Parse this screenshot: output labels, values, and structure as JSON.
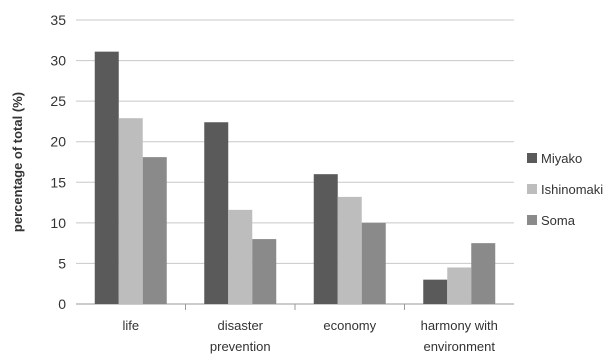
{
  "chart_data": {
    "type": "bar",
    "ylabel": "percentage of total (%)",
    "xlabel": "",
    "ylim": [
      0,
      35
    ],
    "yticks": [
      0,
      5,
      10,
      15,
      20,
      25,
      30,
      35
    ],
    "grid": "horizontal",
    "legend_position": "right",
    "categories": [
      [
        "life"
      ],
      [
        "disaster",
        "prevention"
      ],
      [
        "economy"
      ],
      [
        "harmony with",
        "environment"
      ]
    ],
    "series": [
      {
        "name": "Miyako",
        "color": "#5a5a5a",
        "values": [
          31.1,
          22.4,
          16.0,
          3.0
        ]
      },
      {
        "name": "Ishinomaki",
        "color": "#bdbdbd",
        "values": [
          22.9,
          11.6,
          13.2,
          4.5
        ]
      },
      {
        "name": "Soma",
        "color": "#8a8a8a",
        "values": [
          18.1,
          8.0,
          10.0,
          7.5
        ]
      }
    ]
  }
}
